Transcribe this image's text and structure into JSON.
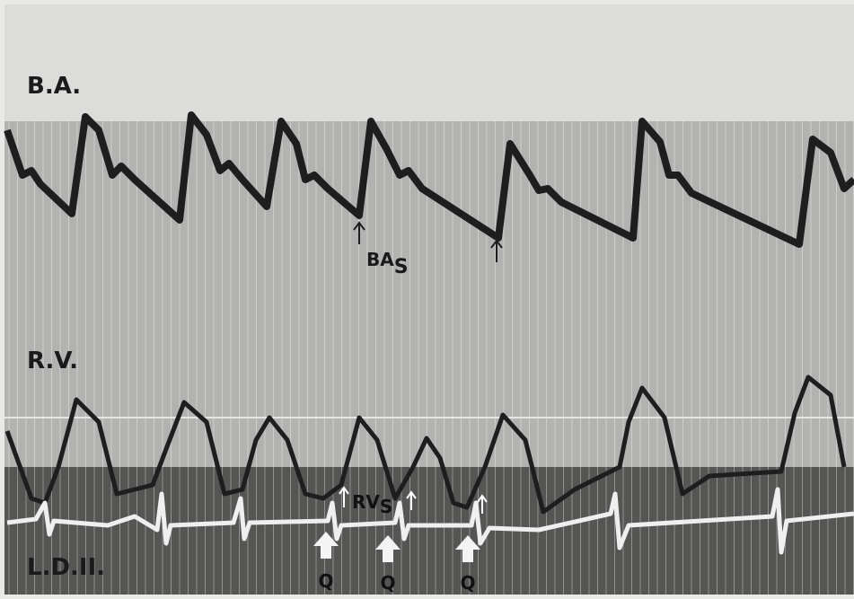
{
  "labels": {
    "ba": "B.A.",
    "rv": "R.V.",
    "ecg": "L.D.II."
  },
  "annotations": {
    "bas": {
      "main": "BA",
      "sub": "S"
    },
    "rvs": {
      "main": "RV",
      "sub": "S"
    },
    "q": [
      "Q",
      "Q",
      "Q"
    ]
  }
}
